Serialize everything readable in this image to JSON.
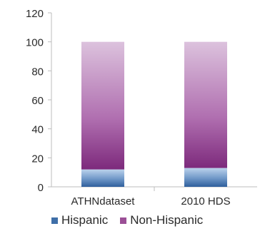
{
  "chart_data": {
    "type": "bar",
    "stacked": true,
    "categories": [
      "ATHNdataset",
      "2010 HDS"
    ],
    "series": [
      {
        "name": "Hispanic",
        "values": [
          12,
          13
        ],
        "color": "#3f6fa8"
      },
      {
        "name": "Non-Hispanic",
        "values": [
          88,
          87
        ],
        "color": "#9b4f96"
      }
    ],
    "ylim": [
      0,
      120
    ],
    "yticks": [
      0,
      20,
      40,
      60,
      80,
      100,
      120
    ],
    "title": "",
    "xlabel": "",
    "ylabel": "",
    "grid": false,
    "legend_position": "bottom"
  }
}
